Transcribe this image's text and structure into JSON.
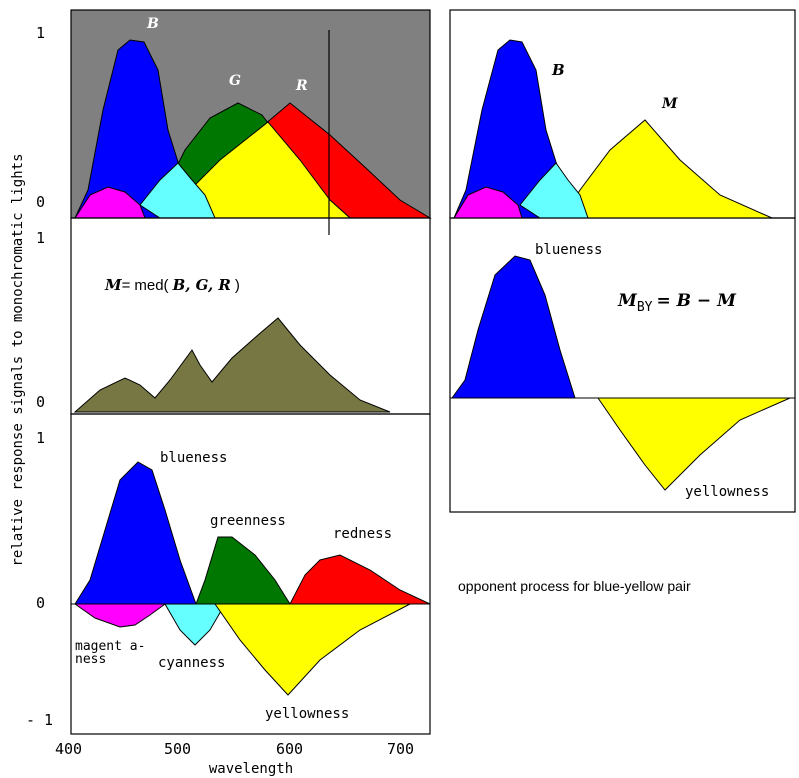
{
  "y_axis_label": "relative response signals to monochromatic lights",
  "x_axis_label": "wavelength",
  "x_ticks": [
    "400",
    "500",
    "600",
    "700"
  ],
  "top_panel": {
    "ticks": [
      "1",
      "0"
    ],
    "labels": {
      "B": "B",
      "G": "G",
      "R": "R"
    },
    "background": "#808080"
  },
  "middle_panel": {
    "ticks": [
      "1",
      "0"
    ],
    "formula": {
      "lhs": "M",
      "eq": "=",
      "fn": "med(",
      "args": "B, G, R",
      "close": ")"
    },
    "fill": "#777744"
  },
  "bottom_panel": {
    "ticks": [
      "1",
      "0",
      "- 1"
    ],
    "labels": {
      "blueness": "blueness",
      "greenness": "greenness",
      "redness": "redness",
      "magentaness_1": "magent a-",
      "magentaness_2": "ness",
      "cyanness": "cyanness",
      "yellowness": "yellowness"
    }
  },
  "right_top_panel": {
    "labels": {
      "B": "B",
      "M": "M"
    }
  },
  "right_bottom_panel": {
    "labels": {
      "blueness": "blueness",
      "yellowness": "yellowness"
    },
    "formula": {
      "lhs": "M",
      "sub": "BY",
      "rhs": "= B − M"
    }
  },
  "caption": "opponent process for blue-yellow pair",
  "colors": {
    "blue": "#0000ff",
    "green": "#007700",
    "red": "#ff0000",
    "yellow": "#ffff00",
    "cyan": "#66ffff",
    "magenta": "#ff00ff",
    "olive": "#777744",
    "gray": "#808080"
  }
}
